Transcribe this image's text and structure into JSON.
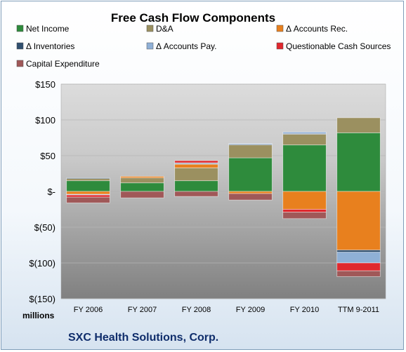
{
  "chart_data": {
    "type": "bar",
    "stacked": true,
    "title": "Free Cash Flow Components",
    "units_label": "millions",
    "footer": "SXC Health Solutions, Corp.",
    "categories": [
      "FY 2006",
      "FY 2007",
      "FY 2008",
      "FY 2009",
      "FY 2010",
      "TTM 9-2011"
    ],
    "y_ticks": [
      "$150",
      "$100",
      "$50",
      "$-",
      "$(50)",
      "$(100)",
      "$(150)"
    ],
    "ylim": [
      -150,
      150
    ],
    "legend_placement": "top",
    "series": [
      {
        "name": "Net Income",
        "color": "#2e8b3c",
        "values": [
          15,
          12,
          15,
          47,
          65,
          82
        ]
      },
      {
        "name": "D&A",
        "color": "#9b9060",
        "values": [
          3,
          7,
          18,
          18,
          15,
          21
        ]
      },
      {
        "name": "Δ Accounts Rec.",
        "color": "#e8801e",
        "values": [
          -4,
          2,
          5,
          -3,
          -25,
          -82
        ]
      },
      {
        "name": "Δ Inventories",
        "color": "#2f4f6f",
        "values": [
          1,
          0,
          1,
          1,
          1,
          -3
        ]
      },
      {
        "name": "Δ Accounts Pay.",
        "color": "#8fb0d6",
        "values": [
          -1,
          0,
          1,
          1,
          2,
          -15
        ]
      },
      {
        "name": "Questionable Cash Sources",
        "color": "#e0282e",
        "values": [
          -3,
          0,
          3,
          0,
          -4,
          -11
        ]
      },
      {
        "name": "Capital Expenditure",
        "color": "#a05858",
        "values": [
          -8,
          -9,
          -7,
          -9,
          -9,
          -8
        ]
      }
    ]
  }
}
